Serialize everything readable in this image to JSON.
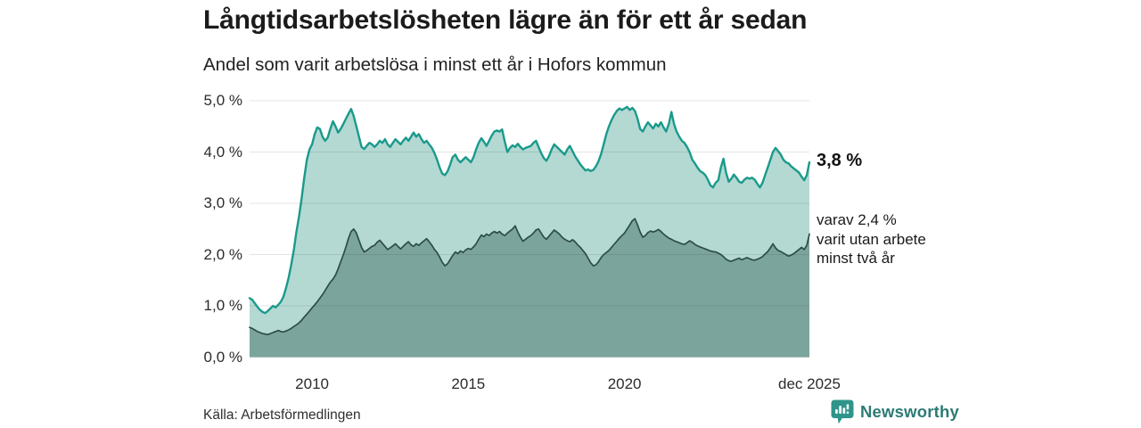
{
  "chart_data": {
    "type": "area",
    "title": "Långtidsarbetslösheten lägre än för ett år sedan",
    "subtitle": "Andel som varit arbetslösa i minst ett år i Hofors kommun",
    "source": "Källa: Arbetsförmedlingen",
    "unit": "%",
    "ylim": [
      0,
      5
    ],
    "grid": "horizontal",
    "frequency": "monthly",
    "x_start": "2008-01",
    "x_end": "2025-12",
    "y_ticks": [
      {
        "label": "5,0 %",
        "value": 5
      },
      {
        "label": "4,0 %",
        "value": 4
      },
      {
        "label": "3,0 %",
        "value": 3
      },
      {
        "label": "2,0 %",
        "value": 2
      },
      {
        "label": "1,0 %",
        "value": 1
      },
      {
        "label": "0,0 %",
        "value": 0
      }
    ],
    "x_ticks": [
      {
        "label": "2010",
        "year": 2010.0
      },
      {
        "label": "2015",
        "year": 2015.0
      },
      {
        "label": "2020",
        "year": 2020.0
      },
      {
        "label": "dec 2025",
        "year": 2025.9167
      }
    ],
    "annotations": {
      "end_value": "3,8 %",
      "sub_annotation": "varav 2,4 %\nvarit utan arbete\nminst två år"
    },
    "series": [
      {
        "id": "minst-ett-ar",
        "name": "Arbetslösa minst ett år",
        "line_color": "#1a9a8b",
        "fill_color": "#b4d9d3",
        "end_value_pct": 3.8,
        "values": [
          1.15,
          1.12,
          1.05,
          0.98,
          0.92,
          0.88,
          0.86,
          0.9,
          0.95,
          1.0,
          0.97,
          1.02,
          1.08,
          1.18,
          1.35,
          1.55,
          1.8,
          2.1,
          2.45,
          2.75,
          3.1,
          3.5,
          3.85,
          4.05,
          4.15,
          4.35,
          4.48,
          4.45,
          4.3,
          4.22,
          4.28,
          4.45,
          4.6,
          4.5,
          4.38,
          4.45,
          4.55,
          4.65,
          4.75,
          4.84,
          4.7,
          4.5,
          4.3,
          4.1,
          4.06,
          4.12,
          4.18,
          4.15,
          4.1,
          4.15,
          4.22,
          4.18,
          4.25,
          4.15,
          4.1,
          4.18,
          4.25,
          4.2,
          4.15,
          4.22,
          4.28,
          4.22,
          4.3,
          4.38,
          4.3,
          4.35,
          4.25,
          4.18,
          4.22,
          4.15,
          4.08,
          3.98,
          3.85,
          3.7,
          3.58,
          3.55,
          3.62,
          3.75,
          3.9,
          3.95,
          3.85,
          3.8,
          3.85,
          3.9,
          3.85,
          3.8,
          3.9,
          4.05,
          4.18,
          4.27,
          4.2,
          4.12,
          4.22,
          4.32,
          4.4,
          4.42,
          4.4,
          4.44,
          4.2,
          4.0,
          4.08,
          4.13,
          4.1,
          4.16,
          4.1,
          4.05,
          4.08,
          4.1,
          4.12,
          4.18,
          4.22,
          4.1,
          3.98,
          3.88,
          3.83,
          3.92,
          4.05,
          4.15,
          4.1,
          4.05,
          4.0,
          3.95,
          4.05,
          4.12,
          4.02,
          3.92,
          3.84,
          3.76,
          3.7,
          3.64,
          3.66,
          3.63,
          3.65,
          3.72,
          3.82,
          3.96,
          4.15,
          4.35,
          4.5,
          4.62,
          4.72,
          4.8,
          4.85,
          4.82,
          4.85,
          4.88,
          4.82,
          4.86,
          4.8,
          4.65,
          4.45,
          4.4,
          4.5,
          4.58,
          4.52,
          4.46,
          4.55,
          4.5,
          4.58,
          4.48,
          4.4,
          4.55,
          4.78,
          4.55,
          4.4,
          4.3,
          4.22,
          4.18,
          4.1,
          4.0,
          3.85,
          3.78,
          3.7,
          3.63,
          3.6,
          3.55,
          3.46,
          3.35,
          3.31,
          3.4,
          3.45,
          3.7,
          3.87,
          3.6,
          3.42,
          3.48,
          3.56,
          3.5,
          3.42,
          3.4,
          3.46,
          3.5,
          3.48,
          3.5,
          3.46,
          3.38,
          3.31,
          3.4,
          3.55,
          3.7,
          3.85,
          4.0,
          4.08,
          4.02,
          3.95,
          3.85,
          3.8,
          3.78,
          3.72,
          3.68,
          3.64,
          3.6,
          3.52,
          3.45,
          3.55,
          3.8
        ]
      },
      {
        "id": "minst-tva-ar",
        "name": "Utan arbete minst två år",
        "line_color": "#2d4d47",
        "fill_color": "#7ba49c",
        "end_value_pct": 2.4,
        "values": [
          0.58,
          0.56,
          0.53,
          0.5,
          0.48,
          0.46,
          0.45,
          0.44,
          0.46,
          0.48,
          0.5,
          0.52,
          0.5,
          0.49,
          0.51,
          0.53,
          0.56,
          0.6,
          0.63,
          0.67,
          0.72,
          0.78,
          0.84,
          0.9,
          0.96,
          1.02,
          1.08,
          1.15,
          1.22,
          1.3,
          1.38,
          1.46,
          1.52,
          1.6,
          1.72,
          1.86,
          2.0,
          2.15,
          2.32,
          2.45,
          2.5,
          2.42,
          2.28,
          2.14,
          2.05,
          2.08,
          2.12,
          2.16,
          2.18,
          2.24,
          2.28,
          2.22,
          2.16,
          2.1,
          2.13,
          2.17,
          2.21,
          2.16,
          2.11,
          2.16,
          2.21,
          2.25,
          2.19,
          2.16,
          2.21,
          2.18,
          2.23,
          2.27,
          2.31,
          2.25,
          2.18,
          2.1,
          2.04,
          1.95,
          1.85,
          1.78,
          1.82,
          1.9,
          1.98,
          2.05,
          2.02,
          2.07,
          2.04,
          2.09,
          2.12,
          2.1,
          2.15,
          2.21,
          2.3,
          2.38,
          2.35,
          2.4,
          2.37,
          2.42,
          2.45,
          2.42,
          2.45,
          2.4,
          2.37,
          2.42,
          2.46,
          2.5,
          2.56,
          2.44,
          2.34,
          2.26,
          2.3,
          2.34,
          2.37,
          2.42,
          2.48,
          2.5,
          2.42,
          2.34,
          2.3,
          2.36,
          2.42,
          2.48,
          2.44,
          2.4,
          2.34,
          2.3,
          2.27,
          2.25,
          2.29,
          2.25,
          2.19,
          2.14,
          2.08,
          2.02,
          1.93,
          1.84,
          1.78,
          1.8,
          1.86,
          1.94,
          2.0,
          2.04,
          2.08,
          2.14,
          2.2,
          2.26,
          2.32,
          2.37,
          2.42,
          2.5,
          2.58,
          2.66,
          2.7,
          2.58,
          2.44,
          2.34,
          2.37,
          2.43,
          2.46,
          2.44,
          2.46,
          2.49,
          2.45,
          2.4,
          2.36,
          2.32,
          2.3,
          2.27,
          2.25,
          2.23,
          2.21,
          2.2,
          2.23,
          2.27,
          2.24,
          2.2,
          2.17,
          2.15,
          2.13,
          2.11,
          2.09,
          2.07,
          2.06,
          2.05,
          2.03,
          2.0,
          1.96,
          1.91,
          1.88,
          1.87,
          1.89,
          1.91,
          1.93,
          1.9,
          1.92,
          1.94,
          1.92,
          1.9,
          1.89,
          1.91,
          1.93,
          1.96,
          2.01,
          2.06,
          2.13,
          2.21,
          2.13,
          2.08,
          2.06,
          2.03,
          2.0,
          1.97,
          1.99,
          2.02,
          2.06,
          2.1,
          2.14,
          2.1,
          2.18,
          2.4
        ]
      }
    ]
  },
  "brand": {
    "name": "Newsworthy",
    "icon": "bar-chart-speech-bubble-icon",
    "icon_color": "#2f948a",
    "text_color": "#2c7a73"
  }
}
